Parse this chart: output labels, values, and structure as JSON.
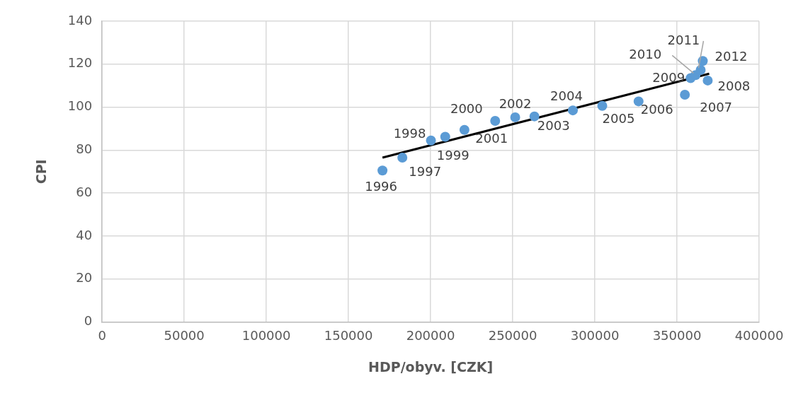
{
  "chart_data": {
    "type": "scatter",
    "xlabel": "HDP/obyv. [CZK]",
    "ylabel": "CPI",
    "xlim": [
      0,
      400000
    ],
    "xticks": [
      0,
      50000,
      100000,
      150000,
      200000,
      250000,
      300000,
      350000,
      400000
    ],
    "ylim": [
      0,
      140
    ],
    "yticks": [
      0,
      20,
      40,
      60,
      80,
      100,
      120,
      140
    ],
    "grid": true,
    "legend": false,
    "series": [
      {
        "color": "#5b9bd5",
        "marker": "circle",
        "x": [
          170700,
          182800,
          200200,
          208900,
          220600,
          239300,
          251500,
          263200,
          286600,
          304500,
          326600,
          354800,
          368700,
          358300,
          361300,
          364400,
          365700
        ],
        "values": [
          70.5,
          76.5,
          84.5,
          86.2,
          89.4,
          93.6,
          95.3,
          95.7,
          98.5,
          100.6,
          102.7,
          105.8,
          112.4,
          113.5,
          114.9,
          117.3,
          121.5
        ]
      },
      {
        "type": "line",
        "color": "#000000",
        "marker": "none",
        "line_style": "solid",
        "x": [
          170700,
          369600
        ],
        "values": [
          76.5,
          115.6
        ]
      }
    ],
    "annotations": [
      {
        "text": "1996",
        "x": 170700,
        "y": 70.5
      },
      {
        "text": "1997",
        "x": 182800,
        "y": 76.5
      },
      {
        "text": "1998",
        "x": 200200,
        "y": 84.5
      },
      {
        "text": "1999",
        "x": 208900,
        "y": 86.2
      },
      {
        "text": "2000",
        "x": 220600,
        "y": 89.4
      },
      {
        "text": "2001",
        "x": 239300,
        "y": 93.6
      },
      {
        "text": "2002",
        "x": 251500,
        "y": 95.3
      },
      {
        "text": "2003",
        "x": 263200,
        "y": 95.7
      },
      {
        "text": "2004",
        "x": 286600,
        "y": 98.5
      },
      {
        "text": "2005",
        "x": 304500,
        "y": 100.6
      },
      {
        "text": "2006",
        "x": 326600,
        "y": 102.7
      },
      {
        "text": "2007",
        "x": 354800,
        "y": 105.8
      },
      {
        "text": "2008",
        "x": 368700,
        "y": 112.4
      },
      {
        "text": "2009",
        "x": 358300,
        "y": 113.5
      },
      {
        "text": "2010",
        "x": 361300,
        "y": 114.9
      },
      {
        "text": "2011",
        "x": 364400,
        "y": 117.3
      },
      {
        "text": "2012",
        "x": 365700,
        "y": 121.5
      }
    ]
  }
}
